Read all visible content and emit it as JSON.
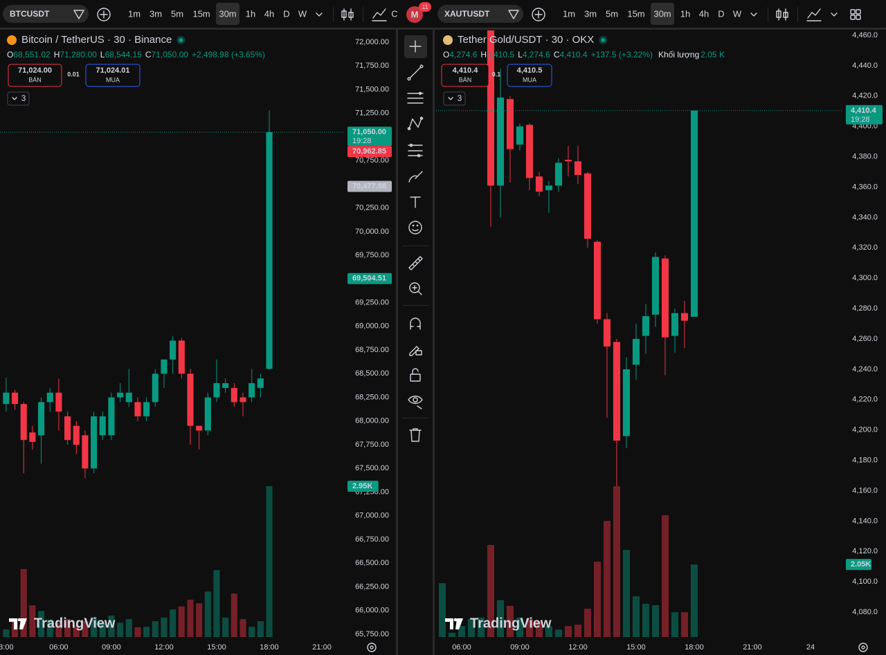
{
  "intervals": [
    "1m",
    "3m",
    "5m",
    "15m",
    "30m",
    "1h",
    "4h",
    "D",
    "W"
  ],
  "selected_interval": 4,
  "account": {
    "initial": "M",
    "notifications": "11"
  },
  "chart_data": [
    {
      "type": "candlestick",
      "symbol": "BTCUSDT",
      "symbol_color": "#f7931a",
      "title": "Bitcoin / TetherUS · 30 · Binance",
      "toolbar_extra": "C",
      "legend": [
        {
          "label": "O",
          "value": "68,551.02"
        },
        {
          "label": "H",
          "value": "71,280.00"
        },
        {
          "label": "L",
          "value": "68,544.15"
        },
        {
          "label": "C",
          "value": "71,050.00"
        }
      ],
      "change": "+2,498.98 (+3.65%)",
      "trade": {
        "sell": "71,024.00",
        "sell_label": "BÁN",
        "spread": "0.01",
        "buy": "71,024.01",
        "buy_label": "MUA"
      },
      "indicators": "3",
      "up_color": "#089981",
      "down_color": "#f23645",
      "x": [
        3,
        3.5,
        4,
        4.5,
        5,
        5.5,
        6,
        6.5,
        7,
        7.5,
        8,
        8.5,
        9,
        9.5,
        10,
        10.5,
        11,
        11.5,
        12,
        12.5,
        13,
        13.5,
        14,
        14.5,
        15,
        15.5,
        16,
        16.5,
        17,
        17.5,
        18
      ],
      "open": [
        68180,
        68300,
        68180,
        67880,
        67850,
        68200,
        68300,
        68050,
        67950,
        67850,
        67500,
        67850,
        67850,
        68250,
        68200,
        68200,
        68050,
        68200,
        68500,
        68650,
        68850,
        68500,
        67950,
        67900,
        68250,
        68350,
        68350,
        68250,
        68250,
        68350,
        68551.02
      ],
      "high": [
        68460,
        68330,
        68200,
        67950,
        68250,
        68350,
        68450,
        68100,
        68000,
        67900,
        68100,
        68100,
        68300,
        68400,
        68550,
        68250,
        68250,
        68550,
        68650,
        68900,
        68880,
        68550,
        67950,
        68300,
        68650,
        68450,
        68400,
        68300,
        68550,
        68500,
        71280
      ],
      "low": [
        68100,
        68120,
        67450,
        67700,
        67550,
        68100,
        67900,
        67750,
        67650,
        67400,
        67450,
        67800,
        67800,
        68200,
        68150,
        68000,
        68000,
        68150,
        68350,
        68500,
        68450,
        67750,
        67700,
        67850,
        68200,
        68300,
        68150,
        68050,
        68200,
        68250,
        68544.15
      ],
      "close": [
        68300,
        68180,
        67800,
        67780,
        68200,
        68300,
        68100,
        67800,
        67750,
        67500,
        68050,
        68050,
        68250,
        68300,
        68300,
        68050,
        68200,
        68500,
        68650,
        68850,
        68500,
        67950,
        67900,
        68250,
        68400,
        68400,
        68200,
        68200,
        68400,
        68450,
        71050
      ],
      "volume": [
        150,
        350,
        1330,
        620,
        510,
        340,
        280,
        350,
        220,
        310,
        390,
        280,
        420,
        280,
        350,
        190,
        200,
        310,
        380,
        540,
        600,
        730,
        660,
        890,
        1310,
        380,
        850,
        350,
        200,
        310,
        2950
      ],
      "xlim": [
        2.65,
        22.3
      ],
      "ylim": [
        65713,
        72124
      ],
      "xticks": [
        {
          "value": 3,
          "label": "3:00"
        },
        {
          "value": 6,
          "label": "06:00"
        },
        {
          "value": 9,
          "label": "09:00"
        },
        {
          "value": 12,
          "label": "12:00"
        },
        {
          "value": 15,
          "label": "15:00"
        },
        {
          "value": 18,
          "label": "18:00"
        },
        {
          "value": 21,
          "label": "21:00"
        }
      ],
      "yticks": [
        {
          "value": 65750,
          "label": "65,750.00"
        },
        {
          "value": 66000,
          "label": "66,000.00"
        },
        {
          "value": 66250,
          "label": "66,250.00"
        },
        {
          "value": 66500,
          "label": "66,500.00"
        },
        {
          "value": 66750,
          "label": "66,750.00"
        },
        {
          "value": 67000,
          "label": "67,000.00"
        },
        {
          "value": 67250,
          "label": "67,250.00"
        },
        {
          "value": 67500,
          "label": "67,500.00"
        },
        {
          "value": 67750,
          "label": "67,750.00"
        },
        {
          "value": 68000,
          "label": "68,000.00"
        },
        {
          "value": 68250,
          "label": "68,250.00"
        },
        {
          "value": 68500,
          "label": "68,500.00"
        },
        {
          "value": 68750,
          "label": "68,750.00"
        },
        {
          "value": 69000,
          "label": "69,000.00"
        },
        {
          "value": 69250,
          "label": "69,250.00"
        },
        {
          "value": 69500,
          "label": "69,500.00"
        },
        {
          "value": 69750,
          "label": "69,750.00"
        },
        {
          "value": 70000,
          "label": "70,000.00"
        },
        {
          "value": 70250,
          "label": "70,250.00"
        },
        {
          "value": 70500,
          "label": "70,500.00"
        },
        {
          "value": 70750,
          "label": "70,750.00"
        },
        {
          "value": 71000,
          "label": "71,000.00"
        },
        {
          "value": 71250,
          "label": "71,250.00"
        },
        {
          "value": 71500,
          "label": "71,500.00"
        },
        {
          "value": 71750,
          "label": "71,750.00"
        },
        {
          "value": 72000,
          "label": "72,000.00"
        }
      ],
      "price_tags": [
        {
          "value": 71050,
          "label": "71,050.00",
          "sublabel": "19:28",
          "color": "#089981",
          "line": true
        },
        {
          "value": 70962.85,
          "label": "70,962.85",
          "color": "#f23645"
        },
        {
          "value": 70477.88,
          "label": "70,477.88",
          "color": "#b2b5be",
          "text_color": "#131722"
        },
        {
          "value": 69504.51,
          "label": "69,504.51",
          "color": "#089981"
        }
      ],
      "volume_tag": {
        "value": 2950,
        "label": "2.95K",
        "color": "#089981"
      },
      "watermark": "TradingView"
    },
    {
      "type": "candlestick",
      "symbol": "XAUTUSDT",
      "symbol_color": "#e2bd72",
      "title": "Tether Gold/USDT · 30 · OKX",
      "legend": [
        {
          "label": "O",
          "value": "4,274.6"
        },
        {
          "label": "H",
          "value": "4,410.5"
        },
        {
          "label": "L",
          "value": "4,274.6"
        },
        {
          "label": "C",
          "value": "4,410.4"
        }
      ],
      "change": "+137.5 (+3.22%)",
      "volume_legend": {
        "label": "Khối lượng",
        "value": "2.05 K"
      },
      "trade": {
        "sell": "4,410.4",
        "sell_label": "BÁN",
        "spread": "0.1",
        "buy": "4,410.5",
        "buy_label": "MUA"
      },
      "indicators": "3",
      "up_color": "#089981",
      "down_color": "#f23645",
      "x": [
        5,
        5.5,
        6,
        6.5,
        7,
        7.5,
        8,
        8.5,
        9,
        9.5,
        10,
        10.5,
        11,
        11.5,
        12,
        12.5,
        13,
        13.5,
        14,
        14.5,
        15,
        15.5,
        16,
        16.5,
        17,
        17.5,
        18
      ],
      "open": [
        null,
        null,
        null,
        null,
        null,
        4475,
        4361,
        4418,
        4388,
        4401,
        4367,
        4358,
        4361,
        4378,
        4377,
        4369,
        4324,
        4273,
        4258,
        4196,
        4243,
        4262,
        4276,
        4313,
        4262,
        4277,
        4274.6
      ],
      "high": [
        null,
        null,
        null,
        null,
        null,
        4480,
        4438,
        4420,
        4402,
        4402,
        4370,
        4364,
        4379,
        4387,
        4387,
        4370,
        4325,
        4277,
        4260,
        4248,
        4270,
        4283,
        4317,
        4315,
        4280,
        4285,
        4410.5
      ],
      "low": [
        null,
        null,
        null,
        null,
        null,
        4334,
        4340,
        4363,
        4384,
        4358,
        4354,
        4343,
        4357,
        4367,
        4362,
        4320,
        4270,
        4208,
        4163,
        4188,
        4233,
        4250,
        4268,
        4236,
        4251,
        4254,
        4274.6
      ],
      "close": [
        null,
        null,
        null,
        null,
        null,
        4361,
        4419,
        4385,
        4400,
        4366,
        4357,
        4361,
        4376,
        4377,
        4368,
        4326,
        4273,
        4255,
        4193,
        4240,
        4260,
        4275,
        4314,
        4261,
        4277,
        4272,
        4410.4
      ],
      "volume": [
        1520,
        120,
        310,
        510,
        550,
        2600,
        1040,
        880,
        550,
        510,
        450,
        310,
        210,
        310,
        350,
        800,
        2130,
        3280,
        4260,
        2460,
        1150,
        940,
        900,
        3440,
        700,
        700,
        2050
      ],
      "xlim": [
        4.68,
        25.68
      ],
      "ylim": [
        4063.2,
        4463.2
      ],
      "xticks": [
        {
          "value": 6,
          "label": "06:00"
        },
        {
          "value": 9,
          "label": "09:00"
        },
        {
          "value": 12,
          "label": "12:00"
        },
        {
          "value": 15,
          "label": "15:00"
        },
        {
          "value": 18,
          "label": "18:00"
        },
        {
          "value": 21,
          "label": "21:00"
        },
        24
      ],
      "yticks": [
        {
          "value": 4080,
          "label": "4,080.0"
        },
        {
          "value": 4100,
          "label": "4,100.0"
        },
        {
          "value": 4120,
          "label": "4,120.0"
        },
        {
          "value": 4140,
          "label": "4,140.0"
        },
        {
          "value": 4160,
          "label": "4,160.0"
        },
        {
          "value": 4180,
          "label": "4,180.0"
        },
        {
          "value": 4200,
          "label": "4,200.0"
        },
        {
          "value": 4220,
          "label": "4,220.0"
        },
        {
          "value": 4240,
          "label": "4,240.0"
        },
        {
          "value": 4260,
          "label": "4,260.0"
        },
        {
          "value": 4280,
          "label": "4,280.0"
        },
        {
          "value": 4300,
          "label": "4,300.0"
        },
        {
          "value": 4320,
          "label": "4,320.0"
        },
        {
          "value": 4340,
          "label": "4,340.0"
        },
        {
          "value": 4360,
          "label": "4,360.0"
        },
        {
          "value": 4380,
          "label": "4,380.0"
        },
        {
          "value": 4400,
          "label": "4,400.0"
        },
        {
          "value": 4420,
          "label": "4,420.0"
        },
        {
          "value": 4440,
          "label": "4,440.0"
        },
        {
          "value": 4460,
          "label": "4,460.0"
        }
      ],
      "price_tags": [
        {
          "value": 4410.4,
          "label": "4,410.4",
          "sublabel": "19:28",
          "color": "#089981",
          "line": true
        }
      ],
      "volume_tag": {
        "value": 2050,
        "label": "2.05K",
        "color": "#089981"
      },
      "watermark": "TradingView"
    }
  ]
}
